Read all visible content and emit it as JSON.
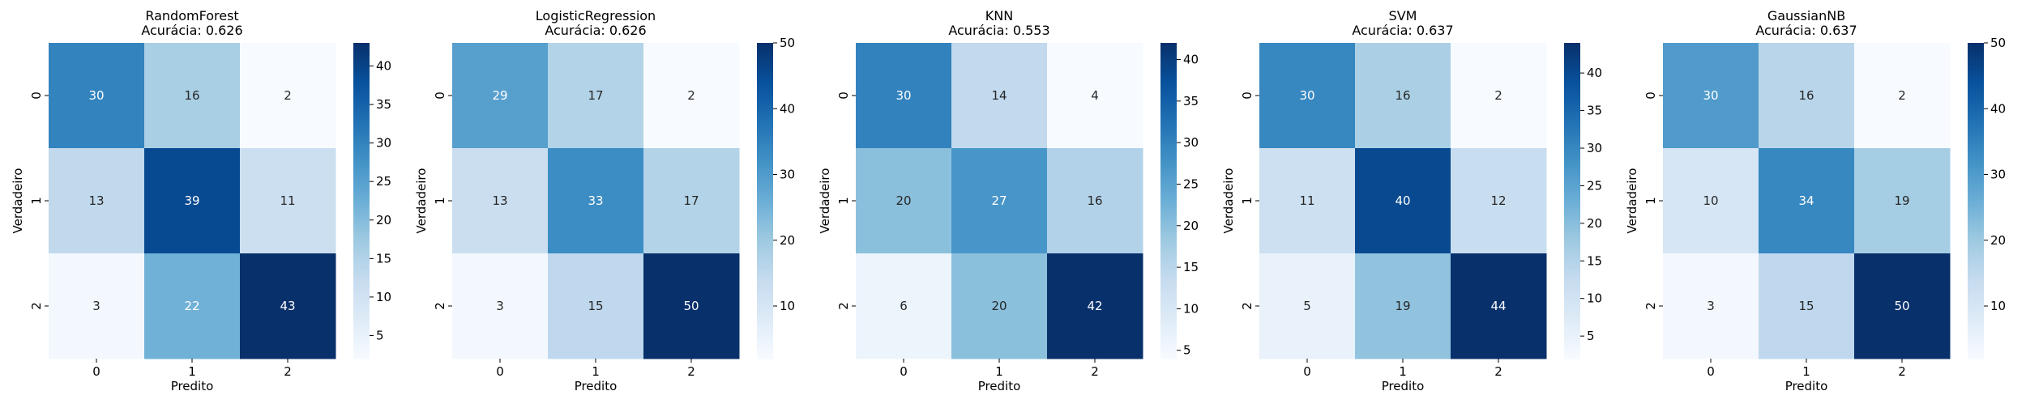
{
  "chart_data": [
    {
      "type": "heatmap",
      "title": "RandomForest",
      "subtitle": "Acurácia: 0.626",
      "xlabel": "Predito",
      "ylabel": "Verdadeiro",
      "x_categories": [
        "0",
        "1",
        "2"
      ],
      "y_categories": [
        "0",
        "1",
        "2"
      ],
      "values": [
        [
          30,
          16,
          2
        ],
        [
          13,
          39,
          11
        ],
        [
          3,
          22,
          43
        ]
      ],
      "colorbar": {
        "min": 2,
        "max": 43,
        "ticks": [
          5,
          10,
          15,
          20,
          25,
          30,
          35,
          40
        ]
      },
      "colormap": "Blues"
    },
    {
      "type": "heatmap",
      "title": "LogisticRegression",
      "subtitle": "Acurácia: 0.626",
      "xlabel": "Predito",
      "ylabel": "Verdadeiro",
      "x_categories": [
        "0",
        "1",
        "2"
      ],
      "y_categories": [
        "0",
        "1",
        "2"
      ],
      "values": [
        [
          29,
          17,
          2
        ],
        [
          13,
          33,
          17
        ],
        [
          3,
          15,
          50
        ]
      ],
      "colorbar": {
        "min": 2,
        "max": 50,
        "ticks": [
          10,
          20,
          30,
          40,
          50
        ]
      },
      "colormap": "Blues"
    },
    {
      "type": "heatmap",
      "title": "KNN",
      "subtitle": "Acurácia: 0.553",
      "xlabel": "Predito",
      "ylabel": "Verdadeiro",
      "x_categories": [
        "0",
        "1",
        "2"
      ],
      "y_categories": [
        "0",
        "1",
        "2"
      ],
      "values": [
        [
          30,
          14,
          4
        ],
        [
          20,
          27,
          16
        ],
        [
          6,
          20,
          42
        ]
      ],
      "colorbar": {
        "min": 4,
        "max": 42,
        "ticks": [
          5,
          10,
          15,
          20,
          25,
          30,
          35,
          40
        ]
      },
      "colormap": "Blues"
    },
    {
      "type": "heatmap",
      "title": "SVM",
      "subtitle": "Acurácia: 0.637",
      "xlabel": "Predito",
      "ylabel": "Verdadeiro",
      "x_categories": [
        "0",
        "1",
        "2"
      ],
      "y_categories": [
        "0",
        "1",
        "2"
      ],
      "values": [
        [
          30,
          16,
          2
        ],
        [
          11,
          40,
          12
        ],
        [
          5,
          19,
          44
        ]
      ],
      "colorbar": {
        "min": 2,
        "max": 44,
        "ticks": [
          5,
          10,
          15,
          20,
          25,
          30,
          35,
          40
        ]
      },
      "colormap": "Blues"
    },
    {
      "type": "heatmap",
      "title": "GaussianNB",
      "subtitle": "Acurácia: 0.637",
      "xlabel": "Predito",
      "ylabel": "Verdadeiro",
      "x_categories": [
        "0",
        "1",
        "2"
      ],
      "y_categories": [
        "0",
        "1",
        "2"
      ],
      "values": [
        [
          30,
          16,
          2
        ],
        [
          10,
          34,
          19
        ],
        [
          3,
          15,
          50
        ]
      ],
      "colorbar": {
        "min": 2,
        "max": 50,
        "ticks": [
          10,
          20,
          30,
          40,
          50
        ]
      },
      "colormap": "Blues"
    }
  ]
}
